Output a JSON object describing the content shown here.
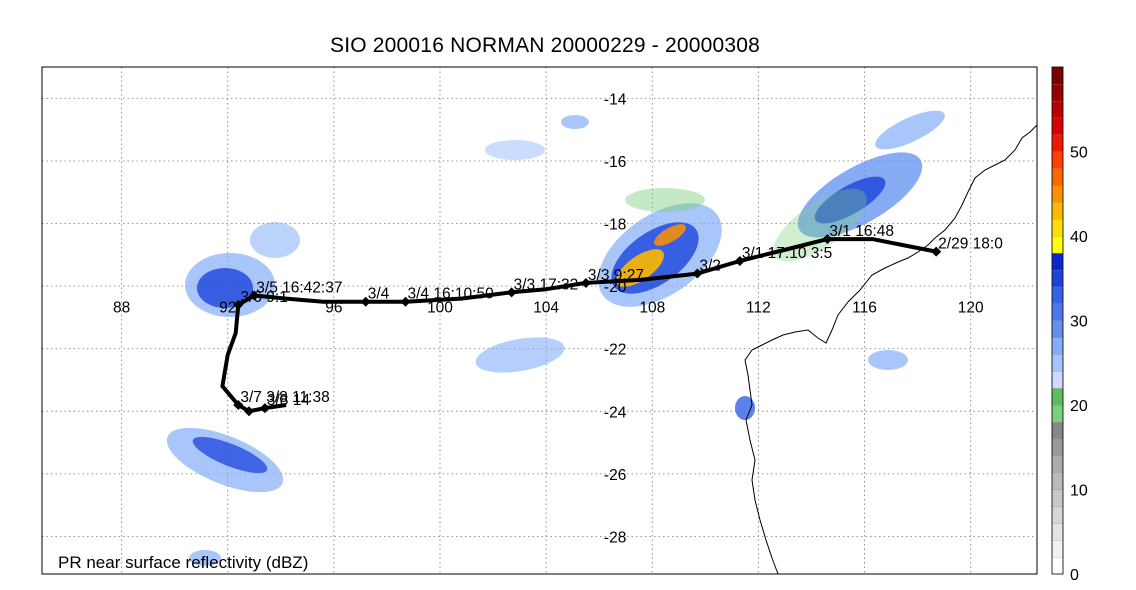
{
  "title": "SIO 200016 NORMAN 20000229 - 20000308",
  "footer_label": "PR near surface reflectivity (dBZ)",
  "lon_ticks": [
    88,
    92,
    96,
    100,
    104,
    108,
    112,
    116,
    120
  ],
  "lat_ticks": [
    -14,
    -16,
    -18,
    -20,
    -22,
    -24,
    -26,
    -28
  ],
  "lon_range": [
    85,
    122.5
  ],
  "lat_range": [
    -13.0,
    -29.2
  ],
  "colorbar": {
    "labels": [
      "0",
      "10",
      "20",
      "30",
      "40",
      "50"
    ],
    "label_values": [
      0,
      10,
      20,
      30,
      40,
      50
    ],
    "min": 0,
    "max": 60,
    "stops": [
      {
        "v": 0,
        "c": "#ffffff"
      },
      {
        "v": 2,
        "c": "#f2f2f2"
      },
      {
        "v": 4,
        "c": "#e4e4e4"
      },
      {
        "v": 6,
        "c": "#d6d6d6"
      },
      {
        "v": 8,
        "c": "#c8c8c8"
      },
      {
        "v": 10,
        "c": "#bababa"
      },
      {
        "v": 12,
        "c": "#acacac"
      },
      {
        "v": 14,
        "c": "#9a9a9a"
      },
      {
        "v": 16,
        "c": "#888888"
      },
      {
        "v": 18,
        "c": "#7ccf7c"
      },
      {
        "v": 20,
        "c": "#5cbd5c"
      },
      {
        "v": 22,
        "c": "#cfd8ff"
      },
      {
        "v": 24,
        "c": "#a8c4ff"
      },
      {
        "v": 26,
        "c": "#84aef8"
      },
      {
        "v": 28,
        "c": "#6090f0"
      },
      {
        "v": 30,
        "c": "#4a78ec"
      },
      {
        "v": 32,
        "c": "#3462e6"
      },
      {
        "v": 34,
        "c": "#1c44dc"
      },
      {
        "v": 36,
        "c": "#0a26cc"
      },
      {
        "v": 38,
        "c": "#ffff00"
      },
      {
        "v": 40,
        "c": "#ffe000"
      },
      {
        "v": 42,
        "c": "#ffb800"
      },
      {
        "v": 44,
        "c": "#ff9000"
      },
      {
        "v": 46,
        "c": "#ff6800"
      },
      {
        "v": 48,
        "c": "#ff4000"
      },
      {
        "v": 50,
        "c": "#f01800"
      },
      {
        "v": 52,
        "c": "#d80000"
      },
      {
        "v": 54,
        "c": "#b80000"
      },
      {
        "v": 56,
        "c": "#980000"
      },
      {
        "v": 58,
        "c": "#780000"
      },
      {
        "v": 60,
        "c": "#5a0000"
      }
    ]
  },
  "track": {
    "points": [
      [
        118.7,
        -18.9
      ],
      [
        117.5,
        -18.7
      ],
      [
        116.3,
        -18.5
      ],
      [
        114.6,
        -18.5
      ],
      [
        113.2,
        -18.8
      ],
      [
        111.3,
        -19.2
      ],
      [
        109.7,
        -19.6
      ],
      [
        107.6,
        -19.8
      ],
      [
        105.5,
        -19.9
      ],
      [
        104.0,
        -20.1
      ],
      [
        102.7,
        -20.2
      ],
      [
        100.8,
        -20.4
      ],
      [
        98.7,
        -20.5
      ],
      [
        97.2,
        -20.5
      ],
      [
        95.6,
        -20.5
      ],
      [
        94.2,
        -20.4
      ],
      [
        93.0,
        -20.3
      ],
      [
        92.4,
        -20.6
      ],
      [
        92.3,
        -21.5
      ],
      [
        92.0,
        -22.2
      ],
      [
        91.8,
        -23.2
      ],
      [
        92.4,
        -23.8
      ],
      [
        92.8,
        -24.0
      ],
      [
        93.4,
        -23.9
      ],
      [
        94.2,
        -23.8
      ]
    ],
    "markers": [
      {
        "lon": 118.7,
        "lat": -18.9,
        "label": "2/29 18:0"
      },
      {
        "lon": 114.6,
        "lat": -18.5,
        "label": "3/1 16:48"
      },
      {
        "lon": 111.3,
        "lat": -19.2,
        "label": "3/1 17:10 3:5"
      },
      {
        "lon": 109.7,
        "lat": -19.6,
        "label": "3/2"
      },
      {
        "lon": 105.5,
        "lat": -19.9,
        "label": "3/3 9:27"
      },
      {
        "lon": 102.7,
        "lat": -20.2,
        "label": "3/3 17:32"
      },
      {
        "lon": 98.7,
        "lat": -20.5,
        "label": "3/4 16:10:50"
      },
      {
        "lon": 97.2,
        "lat": -20.5,
        "label": "3/4"
      },
      {
        "lon": 93.0,
        "lat": -20.3,
        "label": "3/5 16:42:37"
      },
      {
        "lon": 92.4,
        "lat": -20.6,
        "label": "3/6 9:1"
      },
      {
        "lon": 92.4,
        "lat": -23.8,
        "label": "3/7 3/8 11:38"
      },
      {
        "lon": 92.8,
        "lat": -24.0,
        "label": ""
      },
      {
        "lon": 93.4,
        "lat": -23.9,
        "label": "3/8 14"
      }
    ]
  }
}
